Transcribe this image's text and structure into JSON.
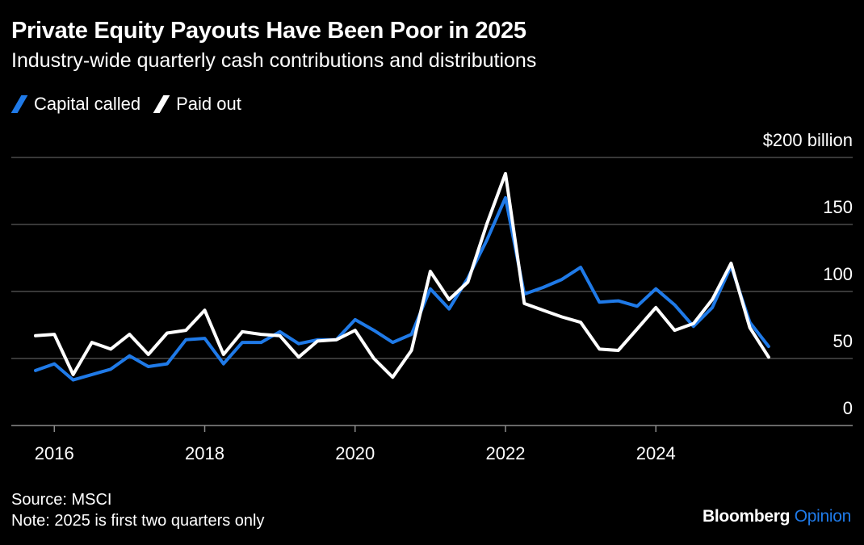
{
  "title": "Private Equity Payouts Have Been Poor in 2025",
  "subtitle": "Industry-wide quarterly cash contributions and distributions",
  "source": "Source: MSCI",
  "note": "Note: 2025 is first two quarters only",
  "brand": {
    "name": "Bloomberg",
    "suffix": "Opinion"
  },
  "chart_data": {
    "type": "line",
    "ylim": [
      0,
      200
    ],
    "y_ticks": [
      {
        "value": 200,
        "label": "$200 billion"
      },
      {
        "value": 150,
        "label": "150"
      },
      {
        "value": 100,
        "label": "100"
      },
      {
        "value": 50,
        "label": "50"
      },
      {
        "value": 0,
        "label": "0"
      }
    ],
    "x_ticks": [
      "2016",
      "2018",
      "2020",
      "2022",
      "2024"
    ],
    "legend": "top-left",
    "grid": true,
    "x": [
      "2015-Q4",
      "2016-Q1",
      "2016-Q2",
      "2016-Q3",
      "2016-Q4",
      "2017-Q1",
      "2017-Q2",
      "2017-Q3",
      "2017-Q4",
      "2018-Q1",
      "2018-Q2",
      "2018-Q3",
      "2018-Q4",
      "2019-Q1",
      "2019-Q2",
      "2019-Q3",
      "2019-Q4",
      "2020-Q1",
      "2020-Q2",
      "2020-Q3",
      "2020-Q4",
      "2021-Q1",
      "2021-Q2",
      "2021-Q3",
      "2021-Q4",
      "2022-Q1",
      "2022-Q2",
      "2022-Q3",
      "2022-Q4",
      "2023-Q1",
      "2023-Q2",
      "2023-Q3",
      "2023-Q4",
      "2024-Q1",
      "2024-Q2",
      "2024-Q3",
      "2024-Q4",
      "2025-Q1",
      "2025-Q2",
      "2025-Q3"
    ],
    "series": [
      {
        "name": "Capital called",
        "color": "#1f7ae8",
        "values": [
          41,
          46,
          34,
          38,
          42,
          52,
          44,
          46,
          64,
          65,
          46,
          62,
          62,
          70,
          61,
          64,
          64,
          79,
          71,
          62,
          68,
          102,
          87,
          110,
          138,
          170,
          98,
          103,
          109,
          118,
          92,
          93,
          89,
          102,
          90,
          74,
          88,
          119,
          77,
          59
        ]
      },
      {
        "name": "Paid out",
        "color": "#ffffff",
        "values": [
          67,
          68,
          38,
          62,
          57,
          68,
          53,
          69,
          71,
          86,
          53,
          70,
          68,
          67,
          51,
          63,
          64,
          71,
          50,
          36,
          56,
          115,
          94,
          107,
          150,
          188,
          91,
          86,
          81,
          77,
          57,
          56,
          72,
          88,
          71,
          76,
          94,
          121,
          73,
          51
        ]
      }
    ]
  }
}
